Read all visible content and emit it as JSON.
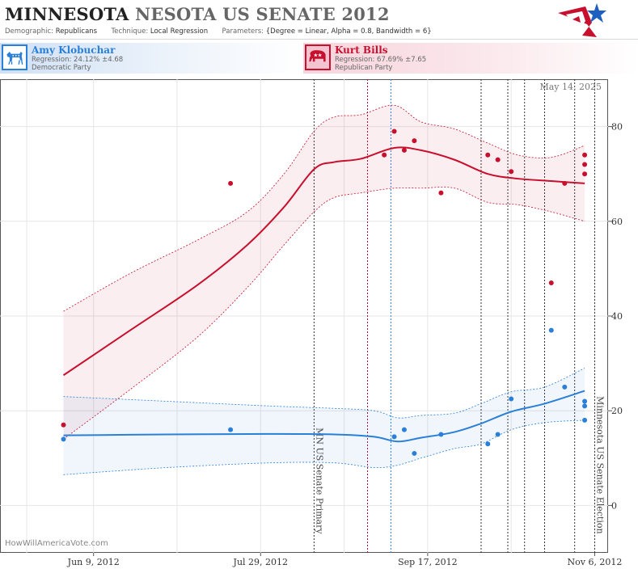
{
  "header": {
    "title_state": "MINNESOTA",
    "title_race": "NESOTA US SENATE 2012",
    "meta": {
      "demographic_label": "Demographic:",
      "demographic_value": "Republicans",
      "technique_label": "Technique:",
      "technique_value": "Local Regression",
      "parameters_label": "Parameters:",
      "parameters_value": "{Degree = Linear, Alpha = 0.8, Bandwidth = 6}"
    }
  },
  "candidates": {
    "dem": {
      "name": "Amy Klobuchar",
      "regression": "Regression: 24.12% ±4.68",
      "party": "Democratic Party",
      "color": "#2a7fd8"
    },
    "rep": {
      "name": "Kurt Bills",
      "regression": "Regression: 67.69% ±7.65",
      "party": "Republican Party",
      "color": "#c8102e"
    }
  },
  "date_stamp": "May 14, 2025",
  "watermark": "HowWillAmericaVote.com",
  "chart_data": {
    "type": "line",
    "x_type": "date",
    "xlim": [
      "2012-05-12",
      "2012-11-10"
    ],
    "ylim": [
      -10,
      90
    ],
    "y_ticks": [
      0,
      20,
      40,
      60,
      80
    ],
    "x_ticks": [
      {
        "date": "2012-06-09",
        "label": "Jun 9, 2012"
      },
      {
        "date": "2012-07-29",
        "label": "Jul 29, 2012"
      },
      {
        "date": "2012-09-17",
        "label": "Sep 17, 2012"
      },
      {
        "date": "2012-11-06",
        "label": "Nov 6, 2012"
      }
    ],
    "minor_x_ticks": [
      "2012-05-20",
      "2012-07-04",
      "2012-08-23",
      "2012-10-12"
    ],
    "event_lines": [
      {
        "date": "2012-08-14",
        "label": "MN US Senate Primary",
        "color": "#333333"
      },
      {
        "date": "2012-11-06",
        "label": "Minnesota US Senate Election",
        "color": "#333333"
      }
    ],
    "debate_lines": [
      {
        "date": "2012-08-30",
        "color": "#a0103a"
      },
      {
        "date": "2012-09-06",
        "color": "#2a7fd8"
      },
      {
        "date": "2012-10-03",
        "color": "#333333"
      },
      {
        "date": "2012-10-11",
        "color": "#333333"
      },
      {
        "date": "2012-10-16",
        "color": "#333333"
      },
      {
        "date": "2012-10-22",
        "color": "#333333"
      },
      {
        "date": "2012-10-31",
        "color": "#333333"
      }
    ],
    "series": [
      {
        "name": "Kurt Bills",
        "color": "#c8102e",
        "points": [
          {
            "x": "2012-05-31",
            "y": 17
          },
          {
            "x": "2012-07-20",
            "y": 68
          },
          {
            "x": "2012-09-04",
            "y": 74
          },
          {
            "x": "2012-09-07",
            "y": 79
          },
          {
            "x": "2012-09-10",
            "y": 75
          },
          {
            "x": "2012-09-13",
            "y": 77
          },
          {
            "x": "2012-09-21",
            "y": 66
          },
          {
            "x": "2012-10-05",
            "y": 74
          },
          {
            "x": "2012-10-08",
            "y": 73
          },
          {
            "x": "2012-10-12",
            "y": 70.5
          },
          {
            "x": "2012-10-24",
            "y": 47
          },
          {
            "x": "2012-10-28",
            "y": 68
          },
          {
            "x": "2012-11-03",
            "y": 74
          },
          {
            "x": "2012-11-03",
            "y": 72
          },
          {
            "x": "2012-11-03",
            "y": 70
          }
        ],
        "fit": [
          {
            "x": "2012-05-31",
            "y": 27.5,
            "lo": 14,
            "hi": 41
          },
          {
            "x": "2012-06-20",
            "y": 37,
            "lo": 24.5,
            "hi": 49
          },
          {
            "x": "2012-07-10",
            "y": 46.5,
            "lo": 35.5,
            "hi": 56
          },
          {
            "x": "2012-07-25",
            "y": 55,
            "lo": 46,
            "hi": 62
          },
          {
            "x": "2012-08-05",
            "y": 63,
            "lo": 55,
            "hi": 70
          },
          {
            "x": "2012-08-14",
            "y": 71,
            "lo": 62,
            "hi": 79
          },
          {
            "x": "2012-08-20",
            "y": 72.5,
            "lo": 65,
            "hi": 82
          },
          {
            "x": "2012-08-28",
            "y": 73.2,
            "lo": 66,
            "hi": 82.5
          },
          {
            "x": "2012-09-07",
            "y": 75.5,
            "lo": 67,
            "hi": 84.5
          },
          {
            "x": "2012-09-15",
            "y": 75,
            "lo": 67,
            "hi": 81
          },
          {
            "x": "2012-09-25",
            "y": 73,
            "lo": 67,
            "hi": 79.5
          },
          {
            "x": "2012-10-05",
            "y": 70,
            "lo": 64,
            "hi": 76.5
          },
          {
            "x": "2012-10-14",
            "y": 69,
            "lo": 63.5,
            "hi": 74
          },
          {
            "x": "2012-10-24",
            "y": 68.5,
            "lo": 62,
            "hi": 73.5
          },
          {
            "x": "2012-11-03",
            "y": 68,
            "lo": 60,
            "hi": 76
          }
        ]
      },
      {
        "name": "Amy Klobuchar",
        "color": "#2a7fd8",
        "points": [
          {
            "x": "2012-05-31",
            "y": 14
          },
          {
            "x": "2012-07-20",
            "y": 16
          },
          {
            "x": "2012-09-07",
            "y": 14.5
          },
          {
            "x": "2012-09-10",
            "y": 16
          },
          {
            "x": "2012-09-13",
            "y": 11
          },
          {
            "x": "2012-09-21",
            "y": 15
          },
          {
            "x": "2012-10-05",
            "y": 13
          },
          {
            "x": "2012-10-08",
            "y": 15
          },
          {
            "x": "2012-10-12",
            "y": 22.5
          },
          {
            "x": "2012-10-24",
            "y": 37
          },
          {
            "x": "2012-10-28",
            "y": 25
          },
          {
            "x": "2012-11-03",
            "y": 22
          },
          {
            "x": "2012-11-03",
            "y": 21
          },
          {
            "x": "2012-11-03",
            "y": 18
          }
        ],
        "fit": [
          {
            "x": "2012-05-31",
            "y": 14.8,
            "lo": 6.5,
            "hi": 23
          },
          {
            "x": "2012-07-01",
            "y": 15,
            "lo": 8,
            "hi": 22
          },
          {
            "x": "2012-08-01",
            "y": 15.1,
            "lo": 9,
            "hi": 21
          },
          {
            "x": "2012-08-20",
            "y": 15,
            "lo": 9,
            "hi": 20.5
          },
          {
            "x": "2012-09-01",
            "y": 14.5,
            "lo": 8,
            "hi": 20
          },
          {
            "x": "2012-09-08",
            "y": 13.5,
            "lo": 8.5,
            "hi": 18.5
          },
          {
            "x": "2012-09-15",
            "y": 14.3,
            "lo": 10,
            "hi": 19
          },
          {
            "x": "2012-09-25",
            "y": 15.5,
            "lo": 12,
            "hi": 19.5
          },
          {
            "x": "2012-10-03",
            "y": 17.3,
            "lo": 13,
            "hi": 21.5
          },
          {
            "x": "2012-10-12",
            "y": 19.8,
            "lo": 16,
            "hi": 24
          },
          {
            "x": "2012-10-22",
            "y": 21.5,
            "lo": 17.5,
            "hi": 25
          },
          {
            "x": "2012-11-03",
            "y": 24.2,
            "lo": 18,
            "hi": 29
          }
        ]
      }
    ]
  }
}
